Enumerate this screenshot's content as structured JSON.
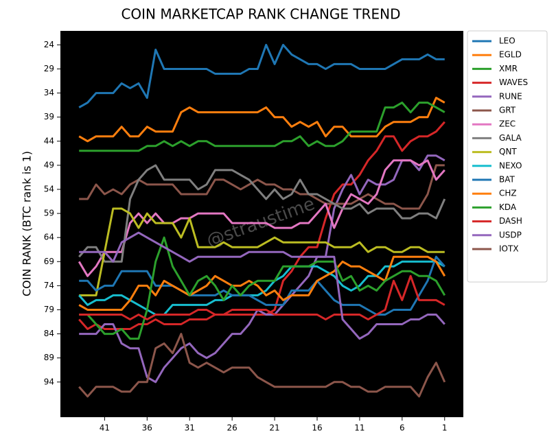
{
  "chart_data": {
    "type": "line",
    "title": "COIN MARKETCAP RANK CHANGE TREND",
    "y_label": "COIN RANK (BTC rank is 1)",
    "annotation": "@straustime",
    "x": [
      44,
      43,
      42,
      41,
      40,
      39,
      38,
      37,
      36,
      35,
      34,
      33,
      32,
      31,
      30,
      29,
      28,
      27,
      26,
      25,
      24,
      23,
      22,
      21,
      20,
      19,
      18,
      17,
      16,
      15,
      14,
      13,
      12,
      11,
      10,
      9,
      8,
      7,
      6,
      5,
      4,
      3,
      2,
      1
    ],
    "xlim": [
      46.2,
      -1.2
    ],
    "xticks": [
      41,
      36,
      31,
      26,
      21,
      16,
      11,
      6,
      1
    ],
    "ylim": [
      101.3,
      21.1
    ],
    "yticks": [
      24,
      29,
      34,
      39,
      44,
      49,
      54,
      59,
      64,
      69,
      74,
      79,
      84,
      89,
      94
    ],
    "legend": "upper right outside",
    "series": [
      {
        "name": "LEO",
        "color": "#1f77b4",
        "values": [
          37,
          36,
          34,
          34,
          34,
          32,
          33,
          32,
          35,
          25,
          29,
          29,
          29,
          29,
          29,
          29,
          30,
          30,
          30,
          30,
          29,
          29,
          24,
          28,
          24,
          26,
          27,
          28,
          28,
          29,
          28,
          28,
          28,
          29,
          29,
          29,
          29,
          28,
          27,
          27,
          27,
          26,
          27,
          27
        ]
      },
      {
        "name": "EGLD",
        "color": "#ff7f0e",
        "values": [
          43,
          44,
          43,
          43,
          43,
          41,
          43,
          43,
          41,
          42,
          42,
          42,
          38,
          37,
          38,
          38,
          38,
          38,
          38,
          38,
          38,
          38,
          37,
          39,
          39,
          41,
          40,
          41,
          40,
          43,
          41,
          41,
          43,
          43,
          43,
          43,
          41,
          40,
          40,
          40,
          39,
          39,
          35,
          36
        ]
      },
      {
        "name": "XMR",
        "color": "#2ca02c",
        "values": [
          46,
          46,
          46,
          46,
          46,
          46,
          46,
          46,
          45,
          45,
          44,
          45,
          44,
          45,
          44,
          44,
          45,
          45,
          45,
          45,
          45,
          45,
          45,
          45,
          44,
          44,
          43,
          45,
          44,
          45,
          45,
          44,
          42,
          42,
          42,
          42,
          37,
          37,
          36,
          38,
          36,
          36,
          37,
          38
        ]
      },
      {
        "name": "WAVES",
        "color": "#d62728",
        "values": [
          81,
          83,
          82,
          83,
          83,
          83,
          83,
          82,
          82,
          81,
          82,
          82,
          82,
          81,
          81,
          81,
          80,
          80,
          80,
          80,
          80,
          80,
          80,
          79,
          73,
          71,
          68,
          66,
          66,
          60,
          55,
          53,
          53,
          51,
          48,
          46,
          43,
          43,
          46,
          44,
          43,
          43,
          42,
          40
        ]
      },
      {
        "name": "RUNE",
        "color": "#9467bd",
        "values": [
          84,
          84,
          84,
          82,
          82,
          86,
          87,
          87,
          93,
          94,
          91,
          89,
          87,
          86,
          88,
          89,
          88,
          86,
          84,
          84,
          82,
          79,
          80,
          80,
          78,
          76,
          74,
          72,
          68,
          68,
          58,
          54,
          51,
          55,
          52,
          53,
          53,
          52,
          48,
          48,
          50,
          47,
          47,
          48
        ]
      },
      {
        "name": "GRT",
        "color": "#8c564b",
        "values": [
          56,
          56,
          53,
          55,
          54,
          55,
          53,
          52,
          53,
          53,
          53,
          53,
          55,
          55,
          55,
          55,
          52,
          52,
          53,
          54,
          53,
          52,
          53,
          53,
          54,
          54,
          55,
          55,
          56,
          57,
          57,
          57,
          57,
          56,
          55,
          56,
          57,
          57,
          58,
          58,
          58,
          55,
          49,
          49
        ]
      },
      {
        "name": "ZEC",
        "color": "#e377c2",
        "values": [
          69,
          72,
          70,
          67,
          67,
          67,
          61,
          59,
          61,
          59,
          61,
          61,
          60,
          60,
          59,
          59,
          59,
          59,
          61,
          61,
          61,
          61,
          61,
          62,
          62,
          62,
          61,
          61,
          59,
          57,
          62,
          58,
          55,
          56,
          57,
          55,
          50,
          48,
          48,
          48,
          49,
          48,
          52,
          50
        ]
      },
      {
        "name": "GALA",
        "color": "#7f7f7f",
        "values": [
          68,
          66,
          66,
          69,
          69,
          69,
          56,
          52,
          50,
          49,
          52,
          52,
          52,
          52,
          54,
          53,
          50,
          50,
          50,
          51,
          52,
          54,
          56,
          54,
          56,
          55,
          52,
          55,
          55,
          56,
          57,
          58,
          58,
          57,
          59,
          58,
          58,
          58,
          60,
          60,
          59,
          59,
          60,
          56
        ]
      },
      {
        "name": "QNT",
        "color": "#bcbd22",
        "values": [
          76,
          76,
          76,
          67,
          58,
          58,
          59,
          62,
          59,
          61,
          61,
          61,
          64,
          60,
          66,
          66,
          66,
          65,
          66,
          66,
          66,
          66,
          65,
          64,
          65,
          65,
          65,
          65,
          65,
          65,
          66,
          66,
          66,
          65,
          67,
          66,
          66,
          67,
          67,
          66,
          66,
          67,
          67,
          67
        ]
      },
      {
        "name": "NEXO",
        "color": "#17becf",
        "values": [
          76,
          78,
          77,
          77,
          76,
          76,
          77,
          78,
          79,
          80,
          80,
          78,
          78,
          78,
          78,
          78,
          77,
          77,
          76,
          76,
          76,
          76,
          75,
          73,
          72,
          70,
          70,
          70,
          70,
          71,
          72,
          74,
          75,
          74,
          72,
          72,
          70,
          70,
          69,
          69,
          69,
          69,
          69,
          70
        ]
      },
      {
        "name": "BAT",
        "color": "#1f77b4",
        "values": [
          73,
          73,
          75,
          74,
          74,
          71,
          71,
          71,
          71,
          74,
          74,
          74,
          75,
          76,
          76,
          76,
          76,
          75,
          76,
          76,
          76,
          77,
          78,
          78,
          78,
          75,
          75,
          75,
          73,
          75,
          77,
          78,
          78,
          78,
          79,
          80,
          80,
          79,
          79,
          79,
          76,
          73,
          68,
          70
        ]
      },
      {
        "name": "CHZ",
        "color": "#ff7f0e",
        "values": [
          78,
          79,
          79,
          79,
          79,
          79,
          77,
          74,
          74,
          76,
          73,
          74,
          75,
          76,
          75,
          74,
          72,
          73,
          74,
          74,
          73,
          74,
          76,
          75,
          77,
          76,
          76,
          76,
          73,
          72,
          71,
          69,
          70,
          70,
          71,
          72,
          73,
          68,
          68,
          68,
          68,
          68,
          69,
          72
        ]
      },
      {
        "name": "KDA",
        "color": "#2ca02c",
        "values": [
          80,
          80,
          82,
          84,
          84,
          83,
          85,
          85,
          79,
          69,
          64,
          70,
          73,
          76,
          73,
          72,
          74,
          77,
          74,
          76,
          74,
          73,
          73,
          73,
          70,
          70,
          70,
          70,
          69,
          69,
          69,
          73,
          72,
          75,
          74,
          75,
          73,
          72,
          71,
          71,
          72,
          72,
          73,
          76
        ]
      },
      {
        "name": "DASH",
        "color": "#d62728",
        "values": [
          80,
          80,
          80,
          80,
          80,
          80,
          81,
          80,
          81,
          80,
          80,
          80,
          80,
          80,
          79,
          79,
          80,
          80,
          79,
          79,
          79,
          79,
          79,
          80,
          80,
          80,
          80,
          80,
          80,
          81,
          80,
          80,
          80,
          80,
          81,
          80,
          79,
          73,
          77,
          72,
          77,
          77,
          77,
          78
        ]
      },
      {
        "name": "USDP",
        "color": "#9467bd",
        "values": [
          67,
          67,
          67,
          67,
          69,
          65,
          64,
          63,
          64,
          65,
          66,
          67,
          68,
          69,
          68,
          68,
          68,
          68,
          68,
          68,
          67,
          67,
          67,
          67,
          67,
          68,
          68,
          68,
          68,
          68,
          68,
          81,
          83,
          85,
          84,
          82,
          82,
          82,
          82,
          81,
          81,
          80,
          80,
          82
        ]
      },
      {
        "name": "IOTX",
        "color": "#8c564b",
        "values": [
          95,
          97,
          95,
          95,
          95,
          96,
          96,
          94,
          94,
          87,
          86,
          88,
          84,
          90,
          91,
          90,
          91,
          92,
          91,
          91,
          91,
          93,
          94,
          95,
          95,
          95,
          95,
          95,
          95,
          95,
          94,
          94,
          95,
          95,
          96,
          96,
          95,
          95,
          95,
          95,
          97,
          93,
          90,
          94
        ]
      }
    ]
  }
}
